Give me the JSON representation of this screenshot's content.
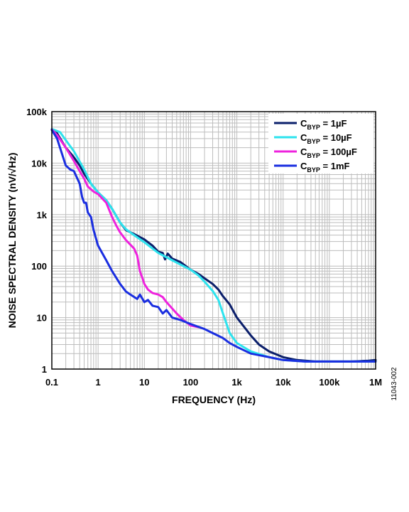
{
  "chart_data": {
    "type": "line",
    "xlabel": "FREQUENCY (Hz)",
    "ylabel": "NOISE SPECTRAL DENSITY (nV/√Hz)",
    "x_scale": "log",
    "y_scale": "log",
    "xlim": [
      0.1,
      1000000
    ],
    "ylim": [
      1,
      100000
    ],
    "grid": true,
    "legend_position": "top-right",
    "x_ticks": [
      {
        "value": 0.1,
        "label": "0.1"
      },
      {
        "value": 1,
        "label": "1"
      },
      {
        "value": 10,
        "label": "10"
      },
      {
        "value": 100,
        "label": "100"
      },
      {
        "value": 1000,
        "label": "1k"
      },
      {
        "value": 10000,
        "label": "10k"
      },
      {
        "value": 100000,
        "label": "100k"
      },
      {
        "value": 1000000,
        "label": "1M"
      }
    ],
    "y_ticks": [
      {
        "value": 1,
        "label": "1"
      },
      {
        "value": 10,
        "label": "10"
      },
      {
        "value": 100,
        "label": "100"
      },
      {
        "value": 1000,
        "label": "1k"
      },
      {
        "value": 10000,
        "label": "10k"
      },
      {
        "value": 100000,
        "label": "100k"
      }
    ],
    "figure_id": "11043-002",
    "series": [
      {
        "legend_main": "C",
        "legend_sub": "BYP",
        "legend_value": " = 1µF",
        "color": "#0b1f6b",
        "points": [
          [
            0.1,
            45000
          ],
          [
            0.13,
            38000
          ],
          [
            0.2,
            20000
          ],
          [
            0.3,
            13000
          ],
          [
            0.4,
            9000
          ],
          [
            0.5,
            6200
          ],
          [
            0.7,
            4000
          ],
          [
            1,
            2700
          ],
          [
            1.5,
            1900
          ],
          [
            2,
            1300
          ],
          [
            3,
            700
          ],
          [
            4,
            500
          ],
          [
            6,
            420
          ],
          [
            10,
            330
          ],
          [
            15,
            250
          ],
          [
            20,
            190
          ],
          [
            25,
            180
          ],
          [
            28,
            135
          ],
          [
            32,
            175
          ],
          [
            40,
            140
          ],
          [
            60,
            120
          ],
          [
            100,
            85
          ],
          [
            150,
            70
          ],
          [
            200,
            58
          ],
          [
            300,
            45
          ],
          [
            400,
            35
          ],
          [
            500,
            26
          ],
          [
            700,
            18
          ],
          [
            1000,
            10
          ],
          [
            2000,
            4.5
          ],
          [
            3000,
            3
          ],
          [
            5000,
            2.2
          ],
          [
            10000,
            1.7
          ],
          [
            20000,
            1.5
          ],
          [
            50000,
            1.4
          ],
          [
            100000,
            1.4
          ],
          [
            300000,
            1.4
          ],
          [
            700000,
            1.45
          ],
          [
            1000000,
            1.5
          ]
        ]
      },
      {
        "legend_main": "C",
        "legend_sub": "BYP",
        "legend_value": " = 10µF",
        "color": "#2de3ee",
        "points": [
          [
            0.1,
            46000
          ],
          [
            0.15,
            40000
          ],
          [
            0.2,
            28000
          ],
          [
            0.3,
            17000
          ],
          [
            0.5,
            7500
          ],
          [
            0.7,
            4000
          ],
          [
            1,
            2700
          ],
          [
            1.5,
            1900
          ],
          [
            2,
            1300
          ],
          [
            3,
            700
          ],
          [
            4,
            520
          ],
          [
            6,
            400
          ],
          [
            10,
            290
          ],
          [
            20,
            180
          ],
          [
            40,
            130
          ],
          [
            70,
            100
          ],
          [
            100,
            85
          ],
          [
            150,
            65
          ],
          [
            200,
            50
          ],
          [
            300,
            33
          ],
          [
            400,
            22
          ],
          [
            500,
            12
          ],
          [
            700,
            5
          ],
          [
            1000,
            3.2
          ],
          [
            2000,
            2.2
          ],
          [
            5000,
            1.7
          ],
          [
            10000,
            1.5
          ],
          [
            30000,
            1.4
          ],
          [
            100000,
            1.4
          ],
          [
            300000,
            1.4
          ],
          [
            1000000,
            1.4
          ]
        ]
      },
      {
        "legend_main": "C",
        "legend_sub": "BYP",
        "legend_value": " = 100µF",
        "color": "#ee22dd",
        "points": [
          [
            0.1,
            45000
          ],
          [
            0.13,
            35000
          ],
          [
            0.2,
            20000
          ],
          [
            0.3,
            11000
          ],
          [
            0.4,
            7000
          ],
          [
            0.5,
            5000
          ],
          [
            0.6,
            3500
          ],
          [
            0.8,
            2800
          ],
          [
            1,
            2500
          ],
          [
            1.5,
            1700
          ],
          [
            2,
            900
          ],
          [
            2.5,
            600
          ],
          [
            3,
            450
          ],
          [
            4,
            320
          ],
          [
            5,
            260
          ],
          [
            6,
            220
          ],
          [
            7,
            160
          ],
          [
            8,
            80
          ],
          [
            9,
            60
          ],
          [
            10,
            45
          ],
          [
            12,
            35
          ],
          [
            15,
            30
          ],
          [
            20,
            28
          ],
          [
            25,
            25
          ],
          [
            30,
            20
          ],
          [
            50,
            12
          ],
          [
            70,
            9
          ],
          [
            100,
            7
          ],
          [
            150,
            6.5
          ]
        ]
      },
      {
        "legend_main": "C",
        "legend_sub": "BYP",
        "legend_value": " = 1mF",
        "color": "#1a2ee0",
        "points": [
          [
            0.1,
            44000
          ],
          [
            0.13,
            30000
          ],
          [
            0.2,
            9000
          ],
          [
            0.25,
            7500
          ],
          [
            0.3,
            7000
          ],
          [
            0.4,
            4000
          ],
          [
            0.45,
            2200
          ],
          [
            0.5,
            1700
          ],
          [
            0.55,
            1700
          ],
          [
            0.6,
            1100
          ],
          [
            0.7,
            900
          ],
          [
            0.8,
            500
          ],
          [
            1,
            250
          ],
          [
            1.5,
            130
          ],
          [
            2,
            80
          ],
          [
            3,
            45
          ],
          [
            4,
            32
          ],
          [
            5,
            28
          ],
          [
            7,
            23
          ],
          [
            8,
            28
          ],
          [
            10,
            20
          ],
          [
            12,
            22
          ],
          [
            15,
            17
          ],
          [
            20,
            16
          ],
          [
            25,
            12
          ],
          [
            30,
            14
          ],
          [
            40,
            10
          ],
          [
            60,
            9
          ],
          [
            100,
            7.5
          ],
          [
            200,
            6
          ],
          [
            300,
            5
          ],
          [
            500,
            4
          ],
          [
            700,
            3.2
          ],
          [
            1000,
            2.7
          ],
          [
            2000,
            2
          ],
          [
            5000,
            1.7
          ],
          [
            10000,
            1.5
          ],
          [
            30000,
            1.4
          ],
          [
            100000,
            1.4
          ],
          [
            300000,
            1.4
          ],
          [
            1000000,
            1.4
          ]
        ]
      }
    ]
  }
}
